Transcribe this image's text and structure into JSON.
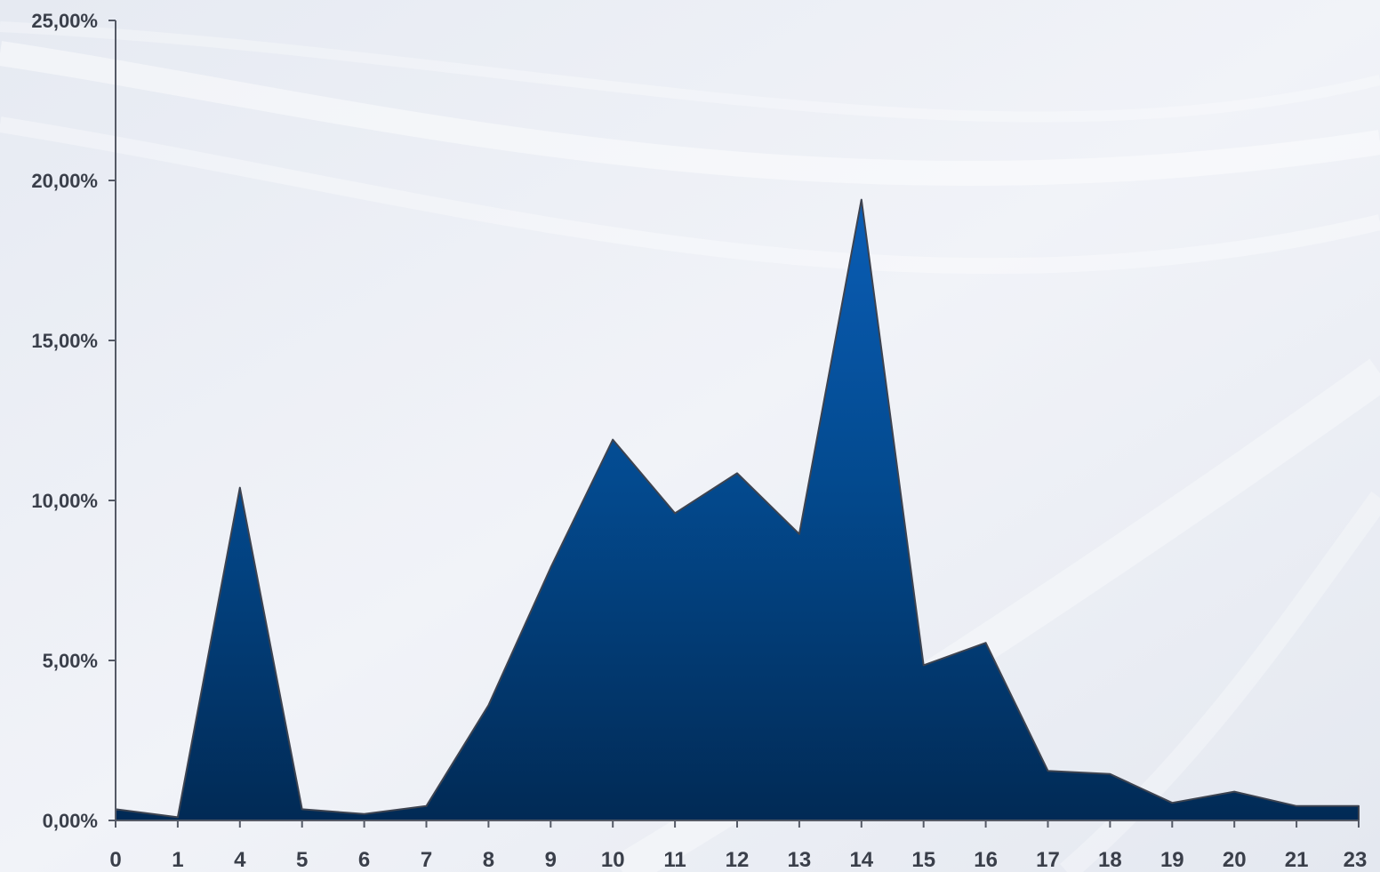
{
  "chart_data": {
    "type": "area",
    "title": "",
    "xlabel": "",
    "ylabel": "",
    "categories": [
      "0",
      "1",
      "4",
      "5",
      "6",
      "7",
      "8",
      "9",
      "10",
      "11",
      "12",
      "13",
      "14",
      "15",
      "16",
      "17",
      "18",
      "19",
      "20",
      "21",
      "23"
    ],
    "values": [
      0.35,
      0.1,
      10.4,
      0.35,
      0.2,
      0.45,
      3.6,
      7.9,
      11.9,
      9.6,
      10.85,
      8.95,
      19.4,
      4.85,
      5.55,
      1.55,
      1.45,
      0.55,
      0.9,
      0.45,
      0.45
    ],
    "ylim": [
      0,
      25
    ],
    "yticks": [
      0,
      5,
      10,
      15,
      20,
      25
    ],
    "ytick_labels": [
      "0,00%",
      "5,00%",
      "10,00%",
      "15,00%",
      "20,00%",
      "25,00%"
    ],
    "grid": false,
    "legend": "none",
    "colors": {
      "fill_top": "#0a5db5",
      "fill_bottom": "#012a55",
      "outline": "#3d4350",
      "axis": "#555a66",
      "background": "#e9edf4"
    }
  }
}
